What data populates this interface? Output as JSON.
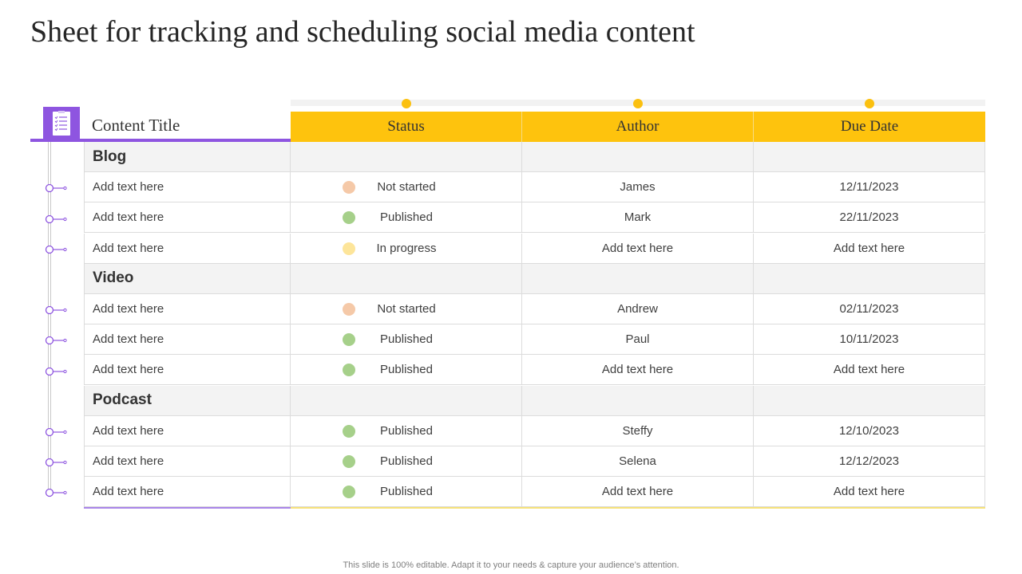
{
  "title": "Sheet for tracking and scheduling social media content",
  "columns": {
    "content_title": "Content  Title",
    "status": "Status",
    "author": "Author",
    "due_date": "Due Date"
  },
  "colors": {
    "purple": "#8e55e0",
    "yellow": "#fec30d",
    "not_started": "#f5c9a8",
    "published": "#a6d08a",
    "in_progress": "#fde59a"
  },
  "icons": {
    "header": "document-checklist-icon",
    "timeline": "timeline-node-icon"
  },
  "groups": [
    {
      "name": "Blog",
      "rows": [
        {
          "title": "Add text here",
          "status": "Not started",
          "status_key": "not_started",
          "author": "James",
          "due": "12/11/2023"
        },
        {
          "title": "Add text here",
          "status": "Published",
          "status_key": "published",
          "author": "Mark",
          "due": "22/11/2023"
        },
        {
          "title": "Add text here",
          "status": "In progress",
          "status_key": "in_progress",
          "author": "Add text here",
          "due": "Add text here"
        }
      ]
    },
    {
      "name": "Video",
      "rows": [
        {
          "title": "Add text here",
          "status": "Not started",
          "status_key": "not_started",
          "author": "Andrew",
          "due": "02/11/2023"
        },
        {
          "title": "Add text here",
          "status": "Published",
          "status_key": "published",
          "author": "Paul",
          "due": "10/11/2023"
        },
        {
          "title": "Add text here",
          "status": "Published",
          "status_key": "published",
          "author": "Add text here",
          "due": "Add text here"
        }
      ]
    },
    {
      "name": "Podcast",
      "rows": [
        {
          "title": "Add text here",
          "status": "Published",
          "status_key": "published",
          "author": "Steffy",
          "due": "12/10/2023"
        },
        {
          "title": "Add text here",
          "status": "Published",
          "status_key": "published",
          "author": "Selena",
          "due": "12/12/2023"
        },
        {
          "title": "Add text here",
          "status": "Published",
          "status_key": "published",
          "author": "Add text here",
          "due": "Add text here"
        }
      ]
    }
  ],
  "footer": "This slide is 100% editable. Adapt it to your needs & capture your audience’s attention."
}
